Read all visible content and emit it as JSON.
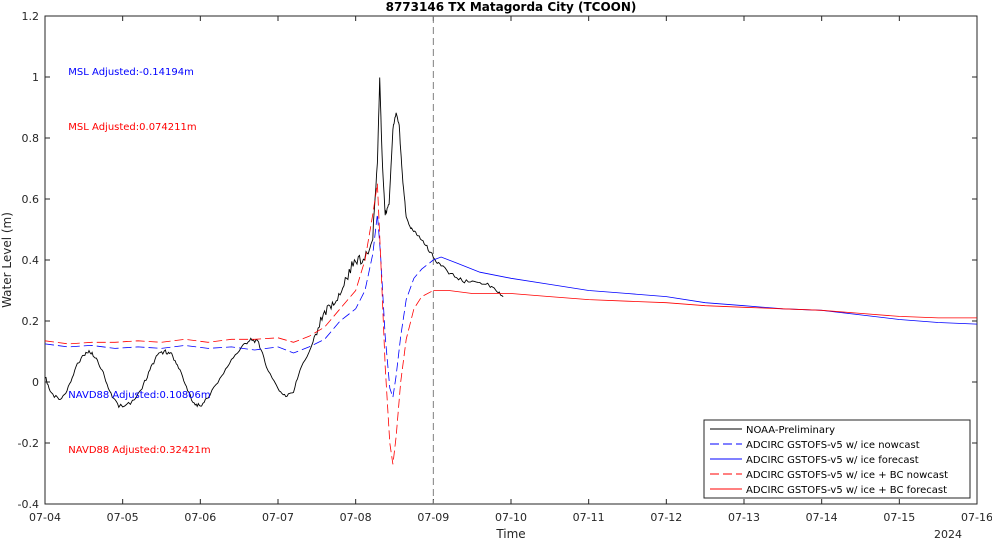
{
  "chart_data": {
    "type": "line",
    "title": "8773146 TX Matagorda City (TCOON)",
    "xlabel": "Time",
    "ylabel": "Water Level (m)",
    "x_year_label": "2024",
    "xlim": [
      "07-04",
      "07-16"
    ],
    "ylim": [
      -0.4,
      1.2
    ],
    "x_ticks": [
      "07-04",
      "07-05",
      "07-06",
      "07-07",
      "07-08",
      "07-09",
      "07-10",
      "07-11",
      "07-12",
      "07-13",
      "07-14",
      "07-15",
      "07-16"
    ],
    "y_ticks": [
      -0.4,
      -0.2,
      0,
      0.2,
      0.4,
      0.6,
      0.8,
      1,
      1.2
    ],
    "y_tick_labels": [
      "-0.4",
      "-0.2",
      "0",
      "0.2",
      "0.4",
      "0.6",
      "0.8",
      "1",
      "1.2"
    ],
    "grid": false,
    "legend_position": "bottom-right",
    "nowcast_forecast_divider_x": "07-09",
    "annotations": [
      {
        "text": "MSL Adjusted:-0.14194m",
        "color": "#0000ff",
        "x": "07-04.3",
        "y": 1.02
      },
      {
        "text": "MSL Adjusted:0.074211m",
        "color": "#ff0000",
        "x": "07-04.3",
        "y": 0.84
      },
      {
        "text": "NAVD88 Adjusted:0.10806m",
        "color": "#0000ff",
        "x": "07-04.3",
        "y": -0.04
      },
      {
        "text": "NAVD88 Adjusted:0.32421m",
        "color": "#ff0000",
        "x": "07-04.3",
        "y": -0.22
      }
    ],
    "series": [
      {
        "name": "NOAA-Preliminary",
        "color": "#000000",
        "style": "solid",
        "x_units": "days after 07-04",
        "points": [
          [
            0,
            0.02
          ],
          [
            0.08,
            -0.04
          ],
          [
            0.2,
            -0.06
          ],
          [
            0.3,
            -0.02
          ],
          [
            0.4,
            0.05
          ],
          [
            0.5,
            0.09
          ],
          [
            0.58,
            0.1
          ],
          [
            0.66,
            0.08
          ],
          [
            0.75,
            0.03
          ],
          [
            0.85,
            -0.04
          ],
          [
            0.95,
            -0.08
          ],
          [
            1.1,
            -0.07
          ],
          [
            1.25,
            -0.02
          ],
          [
            1.35,
            0.04
          ],
          [
            1.45,
            0.09
          ],
          [
            1.55,
            0.1
          ],
          [
            1.63,
            0.09
          ],
          [
            1.72,
            0.05
          ],
          [
            1.82,
            -0.02
          ],
          [
            1.92,
            -0.07
          ],
          [
            2.0,
            -0.08
          ],
          [
            2.1,
            -0.05
          ],
          [
            2.25,
            0.01
          ],
          [
            2.4,
            0.07
          ],
          [
            2.55,
            0.12
          ],
          [
            2.65,
            0.14
          ],
          [
            2.75,
            0.13
          ],
          [
            2.85,
            0.05
          ],
          [
            3.0,
            -0.02
          ],
          [
            3.1,
            -0.05
          ],
          [
            3.2,
            -0.03
          ],
          [
            3.3,
            0.05
          ],
          [
            3.45,
            0.12
          ],
          [
            3.55,
            0.2
          ],
          [
            3.65,
            0.24
          ],
          [
            3.75,
            0.26
          ],
          [
            3.85,
            0.32
          ],
          [
            3.95,
            0.38
          ],
          [
            4.05,
            0.4
          ],
          [
            4.15,
            0.42
          ],
          [
            4.22,
            0.48
          ],
          [
            4.28,
            0.72
          ],
          [
            4.31,
            1.0
          ],
          [
            4.34,
            0.74
          ],
          [
            4.38,
            0.55
          ],
          [
            4.43,
            0.58
          ],
          [
            4.48,
            0.83
          ],
          [
            4.52,
            0.88
          ],
          [
            4.56,
            0.84
          ],
          [
            4.6,
            0.68
          ],
          [
            4.65,
            0.54
          ],
          [
            4.72,
            0.5
          ],
          [
            4.8,
            0.48
          ],
          [
            4.9,
            0.45
          ],
          [
            5.0,
            0.41
          ],
          [
            5.1,
            0.38
          ],
          [
            5.25,
            0.35
          ],
          [
            5.4,
            0.33
          ],
          [
            5.55,
            0.33
          ],
          [
            5.7,
            0.32
          ],
          [
            5.8,
            0.3
          ],
          [
            5.9,
            0.28
          ]
        ]
      },
      {
        "name": "ADCIRC GSTOFS-v5 w/ ice nowcast",
        "color": "#0000ff",
        "style": "dashed",
        "x_units": "days after 07-04",
        "points": [
          [
            0,
            0.125
          ],
          [
            0.3,
            0.115
          ],
          [
            0.6,
            0.12
          ],
          [
            0.9,
            0.11
          ],
          [
            1.2,
            0.115
          ],
          [
            1.5,
            0.11
          ],
          [
            1.8,
            0.12
          ],
          [
            2.1,
            0.11
          ],
          [
            2.4,
            0.115
          ],
          [
            2.7,
            0.105
          ],
          [
            3.0,
            0.115
          ],
          [
            3.2,
            0.095
          ],
          [
            3.4,
            0.115
          ],
          [
            3.6,
            0.14
          ],
          [
            3.8,
            0.2
          ],
          [
            4.0,
            0.24
          ],
          [
            4.12,
            0.3
          ],
          [
            4.22,
            0.42
          ],
          [
            4.28,
            0.55
          ],
          [
            4.32,
            0.42
          ],
          [
            4.38,
            0.15
          ],
          [
            4.44,
            -0.02
          ],
          [
            4.48,
            -0.05
          ],
          [
            4.52,
            0.02
          ],
          [
            4.58,
            0.15
          ],
          [
            4.65,
            0.27
          ],
          [
            4.75,
            0.34
          ],
          [
            4.85,
            0.37
          ],
          [
            5.0,
            0.4
          ]
        ]
      },
      {
        "name": "ADCIRC GSTOFS-v5 w/ ice forecast",
        "color": "#0000ff",
        "style": "solid",
        "x_units": "days after 07-04",
        "points": [
          [
            5.0,
            0.4
          ],
          [
            5.1,
            0.41
          ],
          [
            5.3,
            0.39
          ],
          [
            5.6,
            0.36
          ],
          [
            6.0,
            0.34
          ],
          [
            6.5,
            0.32
          ],
          [
            7.0,
            0.3
          ],
          [
            7.5,
            0.29
          ],
          [
            8.0,
            0.28
          ],
          [
            8.5,
            0.26
          ],
          [
            9.0,
            0.25
          ],
          [
            9.5,
            0.24
          ],
          [
            10.0,
            0.235
          ],
          [
            10.5,
            0.22
          ],
          [
            11.0,
            0.205
          ],
          [
            11.5,
            0.195
          ],
          [
            12.0,
            0.19
          ]
        ]
      },
      {
        "name": "ADCIRC GSTOFS-v5 w/ ice + BC nowcast",
        "color": "#ff0000",
        "style": "dashed",
        "x_units": "days after 07-04",
        "points": [
          [
            0,
            0.135
          ],
          [
            0.3,
            0.125
          ],
          [
            0.6,
            0.13
          ],
          [
            0.9,
            0.13
          ],
          [
            1.2,
            0.135
          ],
          [
            1.5,
            0.13
          ],
          [
            1.8,
            0.14
          ],
          [
            2.1,
            0.13
          ],
          [
            2.4,
            0.14
          ],
          [
            2.7,
            0.14
          ],
          [
            3.0,
            0.145
          ],
          [
            3.2,
            0.13
          ],
          [
            3.4,
            0.15
          ],
          [
            3.6,
            0.18
          ],
          [
            3.8,
            0.24
          ],
          [
            4.0,
            0.3
          ],
          [
            4.12,
            0.4
          ],
          [
            4.22,
            0.55
          ],
          [
            4.28,
            0.65
          ],
          [
            4.32,
            0.42
          ],
          [
            4.38,
            0.05
          ],
          [
            4.44,
            -0.2
          ],
          [
            4.48,
            -0.27
          ],
          [
            4.52,
            -0.18
          ],
          [
            4.58,
            0.0
          ],
          [
            4.65,
            0.14
          ],
          [
            4.75,
            0.24
          ],
          [
            4.85,
            0.28
          ],
          [
            5.0,
            0.3
          ]
        ]
      },
      {
        "name": "ADCIRC GSTOFS-v5 w/ ice + BC forecast",
        "color": "#ff0000",
        "style": "solid",
        "x_units": "days after 07-04",
        "points": [
          [
            5.0,
            0.3
          ],
          [
            5.2,
            0.3
          ],
          [
            5.5,
            0.29
          ],
          [
            6.0,
            0.29
          ],
          [
            6.5,
            0.28
          ],
          [
            7.0,
            0.27
          ],
          [
            7.5,
            0.265
          ],
          [
            8.0,
            0.26
          ],
          [
            8.5,
            0.25
          ],
          [
            9.0,
            0.245
          ],
          [
            9.5,
            0.24
          ],
          [
            10.0,
            0.235
          ],
          [
            10.5,
            0.225
          ],
          [
            11.0,
            0.215
          ],
          [
            11.5,
            0.21
          ],
          [
            12.0,
            0.21
          ]
        ]
      }
    ]
  }
}
